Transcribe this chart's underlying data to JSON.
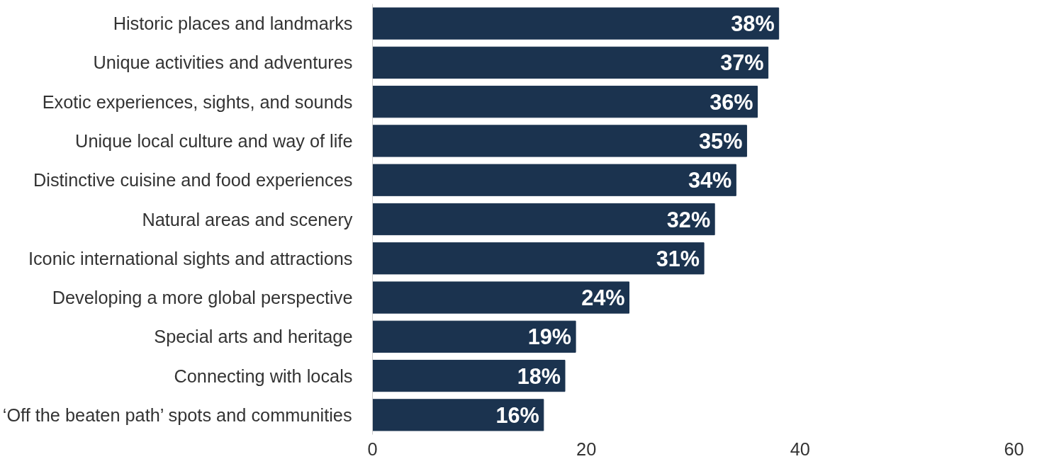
{
  "chart_data": {
    "type": "bar",
    "orientation": "horizontal",
    "categories": [
      "Historic places and landmarks",
      "Unique activities and adventures",
      "Exotic experiences, sights, and sounds",
      "Unique local culture and way of life",
      "Distinctive cuisine and food experiences",
      "Natural areas and scenery",
      "Iconic international sights and attractions",
      "Developing a more global perspective",
      "Special arts and heritage",
      "Connecting with locals",
      "‘Off the beaten path’ spots and communities"
    ],
    "values": [
      38,
      37,
      36,
      35,
      34,
      32,
      31,
      24,
      19,
      18,
      16
    ],
    "value_labels": [
      "38%",
      "37%",
      "36%",
      "35%",
      "34%",
      "32%",
      "31%",
      "24%",
      "19%",
      "18%",
      "16%"
    ],
    "color": "#1b334f",
    "xlim": [
      0,
      60
    ],
    "xticks": [
      0,
      20,
      40,
      60
    ],
    "grid": false
  }
}
